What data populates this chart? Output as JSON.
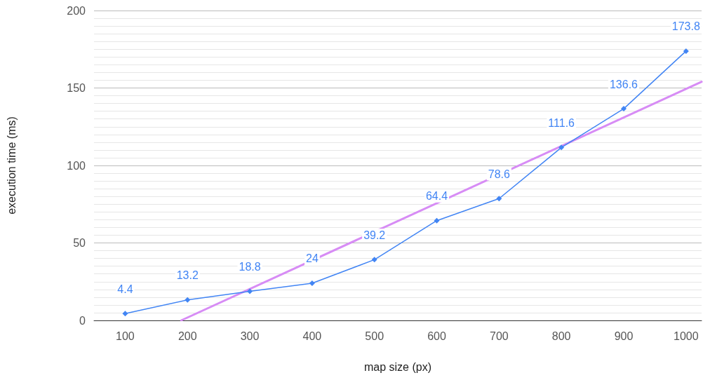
{
  "chart_data": {
    "type": "line",
    "xlabel": "map size (px)",
    "ylabel": "execution time (ms)",
    "x": [
      100,
      200,
      300,
      400,
      500,
      600,
      700,
      800,
      900,
      1000
    ],
    "xlim": [
      50,
      1025
    ],
    "xticks": [
      100,
      200,
      300,
      400,
      500,
      600,
      700,
      800,
      900,
      1000
    ],
    "ylim": [
      0,
      200
    ],
    "yticks": [
      0,
      50,
      100,
      150,
      200
    ],
    "grid": "y",
    "marker": "diamond",
    "series": [
      {
        "color": "#4285f4",
        "values": [
          4.4,
          13.2,
          18.8,
          24,
          39.2,
          64.4,
          78.6,
          111.6,
          136.6,
          173.8
        ],
        "value_labels": [
          "4.4",
          "13.2",
          "18.8",
          "24",
          "39.2",
          "64.4",
          "78.6",
          "111.6",
          "136.6",
          "173.8"
        ]
      },
      {
        "type": "line",
        "color": "#d78cf5",
        "x": [
          190,
          1025
        ],
        "values": [
          0,
          154
        ],
        "marker": "none"
      }
    ]
  }
}
